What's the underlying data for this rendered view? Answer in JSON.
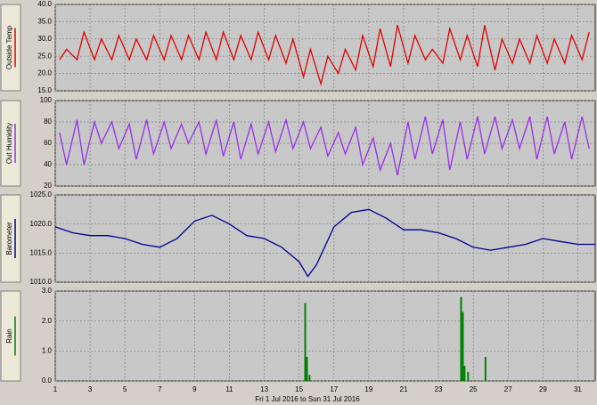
{
  "footer": "Fri 1 Jul 2016  to  Sun 31 Jul 2016",
  "xaxis": {
    "xlim": [
      1,
      32
    ],
    "xticks": [
      1,
      3,
      5,
      7,
      9,
      11,
      13,
      15,
      17,
      19,
      21,
      23,
      25,
      27,
      29,
      31
    ]
  },
  "chart_data": [
    {
      "type": "line",
      "y_label": "Outside Temp",
      "color": "#e00000",
      "ylim": [
        15,
        40
      ],
      "yticks": [
        {
          "value": 15,
          "label": "15.0"
        },
        {
          "value": 20,
          "label": "20.0"
        },
        {
          "value": 25,
          "label": "25.0"
        },
        {
          "value": 30,
          "label": "30.0"
        },
        {
          "value": 35,
          "label": "35.0"
        },
        {
          "value": 40,
          "label": "40.0"
        }
      ],
      "x": [
        1.25,
        1.65,
        2.25,
        2.65,
        3.25,
        3.65,
        4.25,
        4.65,
        5.25,
        5.65,
        6.25,
        6.65,
        7.25,
        7.65,
        8.25,
        8.65,
        9.25,
        9.65,
        10.25,
        10.65,
        11.25,
        11.65,
        12.25,
        12.65,
        13.25,
        13.65,
        14.25,
        14.65,
        15.25,
        15.65,
        16.25,
        16.65,
        17.25,
        17.65,
        18.25,
        18.65,
        19.25,
        19.65,
        20.25,
        20.65,
        21.25,
        21.65,
        22.25,
        22.65,
        23.25,
        23.65,
        24.25,
        24.65,
        25.25,
        25.65,
        26.25,
        26.65,
        27.25,
        27.65,
        28.25,
        28.65,
        29.25,
        29.65,
        30.25,
        30.65,
        31.25,
        31.65
      ],
      "values": [
        24,
        27,
        24,
        32,
        24,
        30,
        24,
        31,
        24,
        30,
        24,
        31,
        24,
        31,
        24,
        31,
        24,
        32,
        24,
        32,
        24,
        31,
        24,
        32,
        24,
        31,
        23,
        30,
        19,
        27,
        17,
        25,
        20,
        27,
        21,
        31,
        22,
        33,
        22,
        34,
        23,
        31,
        24,
        27,
        23,
        33,
        24,
        31,
        22,
        34,
        21,
        30,
        23,
        30,
        23,
        31,
        23,
        30,
        23,
        31,
        24,
        32
      ]
    },
    {
      "type": "line",
      "y_label": "Out Humidity",
      "color": "#9a2ee8",
      "ylim": [
        20,
        100
      ],
      "yticks": [
        20,
        40,
        60,
        80,
        100
      ],
      "x": [
        1.25,
        1.65,
        2.25,
        2.65,
        3.25,
        3.65,
        4.25,
        4.65,
        5.25,
        5.65,
        6.25,
        6.65,
        7.25,
        7.65,
        8.25,
        8.65,
        9.25,
        9.65,
        10.25,
        10.65,
        11.25,
        11.65,
        12.25,
        12.65,
        13.25,
        13.65,
        14.25,
        14.65,
        15.25,
        15.65,
        16.25,
        16.65,
        17.25,
        17.65,
        18.25,
        18.65,
        19.25,
        19.65,
        20.25,
        20.65,
        21.25,
        21.65,
        22.25,
        22.65,
        23.25,
        23.65,
        24.25,
        24.65,
        25.25,
        25.65,
        26.25,
        26.65,
        27.25,
        27.65,
        28.25,
        28.65,
        29.25,
        29.65,
        30.25,
        30.65,
        31.25,
        31.65
      ],
      "values": [
        70,
        40,
        82,
        40,
        80,
        60,
        80,
        55,
        78,
        45,
        82,
        50,
        80,
        55,
        78,
        60,
        80,
        50,
        82,
        48,
        80,
        45,
        78,
        50,
        80,
        52,
        82,
        55,
        80,
        55,
        75,
        48,
        70,
        50,
        75,
        40,
        65,
        35,
        60,
        30,
        80,
        45,
        85,
        50,
        82,
        35,
        80,
        45,
        85,
        50,
        85,
        55,
        82,
        55,
        85,
        45,
        85,
        50,
        80,
        45,
        85,
        55
      ]
    },
    {
      "type": "line",
      "y_label": "Barometer",
      "color": "#000090",
      "ylim": [
        1010,
        1025
      ],
      "yticks": [
        {
          "value": 1010,
          "label": "1010.0"
        },
        {
          "value": 1015,
          "label": "1015.0"
        },
        {
          "value": 1020,
          "label": "1020.0"
        },
        {
          "value": 1025,
          "label": "1025.0"
        }
      ],
      "x": [
        1,
        2,
        3,
        4,
        5,
        6,
        7,
        8,
        9,
        10,
        11,
        12,
        13,
        14,
        15,
        15.5,
        16,
        17,
        18,
        19,
        20,
        21,
        22,
        23,
        24,
        25,
        26,
        27,
        28,
        29,
        30,
        31,
        32
      ],
      "values": [
        1019.5,
        1018.5,
        1018,
        1018,
        1017.5,
        1016.5,
        1016,
        1017.5,
        1020.5,
        1021.5,
        1020,
        1018,
        1017.5,
        1016,
        1013.5,
        1011,
        1013,
        1019.5,
        1022,
        1022.5,
        1021,
        1019,
        1019,
        1018.5,
        1017.5,
        1016,
        1015.5,
        1016,
        1016.5,
        1017.5,
        1017,
        1016.5,
        1016.5
      ]
    },
    {
      "type": "bar",
      "y_label": "Rain",
      "color": "#008000",
      "ylim": [
        0,
        3
      ],
      "yticks": [
        {
          "value": 0,
          "label": "0.0"
        },
        {
          "value": 1,
          "label": "1.0"
        },
        {
          "value": 2,
          "label": "2.0"
        },
        {
          "value": 3,
          "label": "3.0"
        }
      ],
      "x": [
        15.35,
        15.45,
        15.6,
        24.3,
        24.4,
        24.5,
        24.7,
        25.7
      ],
      "values": [
        2.6,
        0.8,
        0.2,
        2.8,
        2.3,
        0.5,
        0.3,
        0.8
      ]
    }
  ]
}
